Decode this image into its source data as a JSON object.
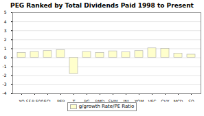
{
  "chart_data": {
    "type": "bar",
    "title": "PEG Ranked by Total Dividends Paid 1998 to Present",
    "categories": [
      "XO",
      "S&P 500",
      "ECL",
      "PEP",
      "T",
      "PG",
      "RMD",
      "SHW",
      "JNJ",
      "XOM",
      "VFC",
      "CVX",
      "MCD",
      "SO"
    ],
    "series": [
      {
        "name": "g/growth Rate/PE Ratio",
        "color": "#ffffcc",
        "values": [
          0.55,
          0.65,
          0.75,
          0.85,
          -1.8,
          0.65,
          0.55,
          0.72,
          0.6,
          0.75,
          1.05,
          1.0,
          0.45,
          0.35
        ]
      }
    ],
    "ylim": [
      -4,
      5
    ],
    "yticks": [
      -4,
      -3,
      -2,
      -1,
      0,
      1,
      2,
      3,
      4,
      5
    ],
    "grid": true,
    "legend": "bottom"
  }
}
